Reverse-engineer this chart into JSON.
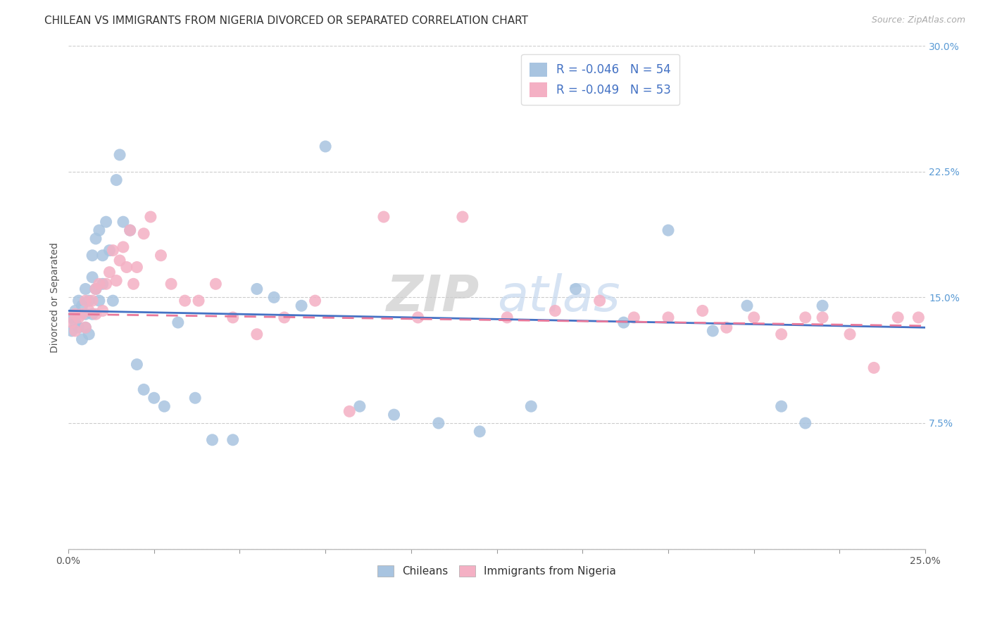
{
  "title": "CHILEAN VS IMMIGRANTS FROM NIGERIA DIVORCED OR SEPARATED CORRELATION CHART",
  "source": "Source: ZipAtlas.com",
  "ylabel": "Divorced or Separated",
  "xlim": [
    0.0,
    0.25
  ],
  "ylim": [
    0.0,
    0.3
  ],
  "xtick_positions": [
    0.0,
    0.025,
    0.05,
    0.075,
    0.1,
    0.125,
    0.15,
    0.175,
    0.2,
    0.225,
    0.25
  ],
  "xtick_labels": [
    "0.0%",
    "",
    "",
    "",
    "",
    "",
    "",
    "",
    "",
    "",
    "25.0%"
  ],
  "ytick_positions": [
    0.0,
    0.075,
    0.15,
    0.225,
    0.3
  ],
  "ytick_labels": [
    "",
    "7.5%",
    "15.0%",
    "22.5%",
    "30.0%"
  ],
  "legend1_label": "R = -0.046   N = 54",
  "legend2_label": "R = -0.049   N = 53",
  "legend_bottom1": "Chileans",
  "legend_bottom2": "Immigrants from Nigeria",
  "blue_color": "#a8c4e0",
  "pink_color": "#f4b0c4",
  "line_blue": "#4472c4",
  "line_pink": "#e8789a",
  "title_fontsize": 11,
  "tick_fontsize": 10,
  "source_fontsize": 9,
  "chileans_x": [
    0.001,
    0.001,
    0.002,
    0.002,
    0.003,
    0.003,
    0.004,
    0.004,
    0.005,
    0.005,
    0.005,
    0.006,
    0.006,
    0.007,
    0.007,
    0.007,
    0.008,
    0.008,
    0.009,
    0.009,
    0.01,
    0.01,
    0.011,
    0.012,
    0.013,
    0.014,
    0.015,
    0.016,
    0.018,
    0.02,
    0.022,
    0.025,
    0.028,
    0.032,
    0.037,
    0.042,
    0.048,
    0.055,
    0.06,
    0.068,
    0.075,
    0.085,
    0.095,
    0.108,
    0.12,
    0.135,
    0.148,
    0.162,
    0.175,
    0.188,
    0.198,
    0.208,
    0.215,
    0.22
  ],
  "chileans_y": [
    0.138,
    0.13,
    0.135,
    0.142,
    0.132,
    0.148,
    0.125,
    0.145,
    0.132,
    0.14,
    0.155,
    0.128,
    0.148,
    0.162,
    0.14,
    0.175,
    0.155,
    0.185,
    0.148,
    0.19,
    0.158,
    0.175,
    0.195,
    0.178,
    0.148,
    0.22,
    0.235,
    0.195,
    0.19,
    0.11,
    0.095,
    0.09,
    0.085,
    0.135,
    0.09,
    0.065,
    0.065,
    0.155,
    0.15,
    0.145,
    0.24,
    0.085,
    0.08,
    0.075,
    0.07,
    0.085,
    0.155,
    0.135,
    0.19,
    0.13,
    0.145,
    0.085,
    0.075,
    0.145
  ],
  "nigeria_x": [
    0.001,
    0.002,
    0.002,
    0.003,
    0.004,
    0.005,
    0.005,
    0.006,
    0.007,
    0.008,
    0.008,
    0.009,
    0.01,
    0.011,
    0.012,
    0.013,
    0.014,
    0.015,
    0.016,
    0.017,
    0.018,
    0.019,
    0.02,
    0.022,
    0.024,
    0.027,
    0.03,
    0.034,
    0.038,
    0.043,
    0.048,
    0.055,
    0.063,
    0.072,
    0.082,
    0.092,
    0.102,
    0.115,
    0.128,
    0.142,
    0.155,
    0.165,
    0.175,
    0.185,
    0.192,
    0.2,
    0.208,
    0.215,
    0.22,
    0.228,
    0.235,
    0.242,
    0.248
  ],
  "nigeria_y": [
    0.135,
    0.13,
    0.14,
    0.138,
    0.14,
    0.132,
    0.148,
    0.142,
    0.148,
    0.155,
    0.14,
    0.158,
    0.142,
    0.158,
    0.165,
    0.178,
    0.16,
    0.172,
    0.18,
    0.168,
    0.19,
    0.158,
    0.168,
    0.188,
    0.198,
    0.175,
    0.158,
    0.148,
    0.148,
    0.158,
    0.138,
    0.128,
    0.138,
    0.148,
    0.082,
    0.198,
    0.138,
    0.198,
    0.138,
    0.142,
    0.148,
    0.138,
    0.138,
    0.142,
    0.132,
    0.138,
    0.128,
    0.138,
    0.138,
    0.128,
    0.108,
    0.138,
    0.138
  ]
}
